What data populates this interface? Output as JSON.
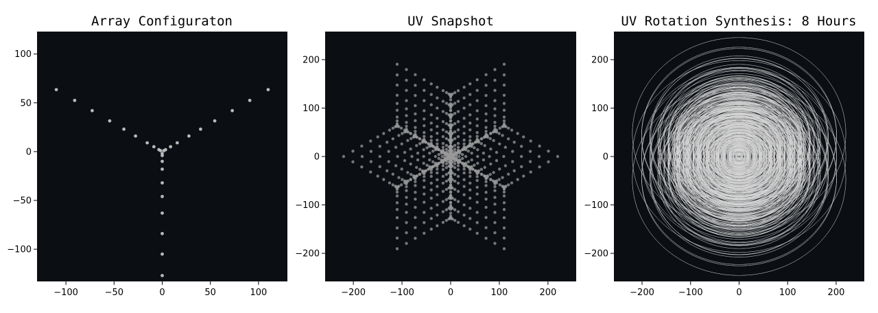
{
  "chart_data": [
    {
      "type": "scatter",
      "title": "Array Configuraton",
      "xlim": [
        -130,
        130
      ],
      "ylim": [
        -133,
        123
      ],
      "xticks": [
        -100,
        -50,
        0,
        50,
        100
      ],
      "yticks": [
        -100,
        -50,
        0,
        50,
        100
      ],
      "xtick_labels": [
        "−100",
        "−50",
        "0",
        "50",
        "100"
      ],
      "ytick_labels": [
        "−100",
        "−50",
        "0",
        "50",
        "100"
      ],
      "background": "#0b0f14",
      "marker_color": "#b9b9b9",
      "arm_radii": [
        2,
        4,
        10,
        18,
        32,
        46,
        63,
        84,
        105,
        127
      ],
      "arm_angles_deg": [
        -90,
        30,
        150
      ],
      "note": "Y-shaped antenna layout: three arms of 10 antennas each"
    },
    {
      "type": "scatter",
      "title": "UV Snapshot",
      "xlim": [
        -258,
        258
      ],
      "ylim": [
        -258,
        258
      ],
      "xticks": [
        -200,
        -100,
        0,
        100,
        200
      ],
      "yticks": [
        -200,
        -100,
        0,
        100,
        200
      ],
      "xtick_labels": [
        "−200",
        "−100",
        "0",
        "100",
        "200"
      ],
      "ytick_labels": [
        "−200",
        "−100",
        "0",
        "100",
        "200"
      ],
      "background": "#0b0f14",
      "marker_color": "#9a9a9a",
      "baselines": "all pairwise differences of the array positions (and their negatives)"
    },
    {
      "type": "line",
      "title": "UV Rotation Synthesis: 8 Hours",
      "xlim": [
        -258,
        258
      ],
      "ylim": [
        -258,
        258
      ],
      "xticks": [
        -200,
        -100,
        0,
        100,
        200
      ],
      "yticks": [
        -200,
        -100,
        0,
        100,
        200
      ],
      "xtick_labels": [
        "−200",
        "−100",
        "0",
        "100",
        "200"
      ],
      "ytick_labels": [
        "−200",
        "−100",
        "0",
        "100",
        "200"
      ],
      "background": "#0b0f14",
      "line_color": "#d8d8d8",
      "duration_hours": 8
    }
  ]
}
